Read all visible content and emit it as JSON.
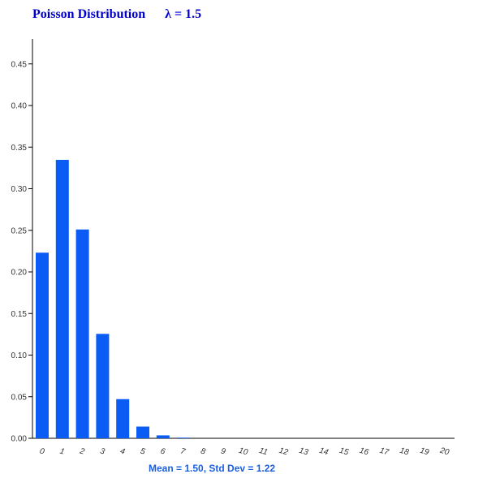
{
  "header": {
    "title": "Poisson Distribution",
    "parameter": "λ = 1.5"
  },
  "footer": {
    "stats": "Mean = 1.50, Std Dev = 1.22"
  },
  "colors": {
    "bar": "#0a5cf5",
    "title": "#0000cc",
    "stats": "#1a5fe0",
    "axis": "#000000"
  },
  "chart_data": {
    "type": "bar",
    "categories": [
      "0",
      "1",
      "2",
      "3",
      "4",
      "5",
      "6",
      "7",
      "8",
      "9",
      "10",
      "11",
      "12",
      "13",
      "14",
      "15",
      "16",
      "17",
      "18",
      "19",
      "20"
    ],
    "values": [
      0.2231,
      0.3347,
      0.251,
      0.1255,
      0.0471,
      0.0141,
      0.0035,
      0.0008,
      0.0001,
      0,
      0,
      0,
      0,
      0,
      0,
      0,
      0,
      0,
      0,
      0,
      0
    ],
    "y_ticks": [
      "0.00",
      "0.05",
      "0.10",
      "0.15",
      "0.20",
      "0.25",
      "0.30",
      "0.35",
      "0.40",
      "0.45"
    ],
    "ylim": [
      0,
      0.48
    ],
    "grid": false,
    "title": "Poisson Distribution",
    "xlabel": "",
    "ylabel": ""
  }
}
